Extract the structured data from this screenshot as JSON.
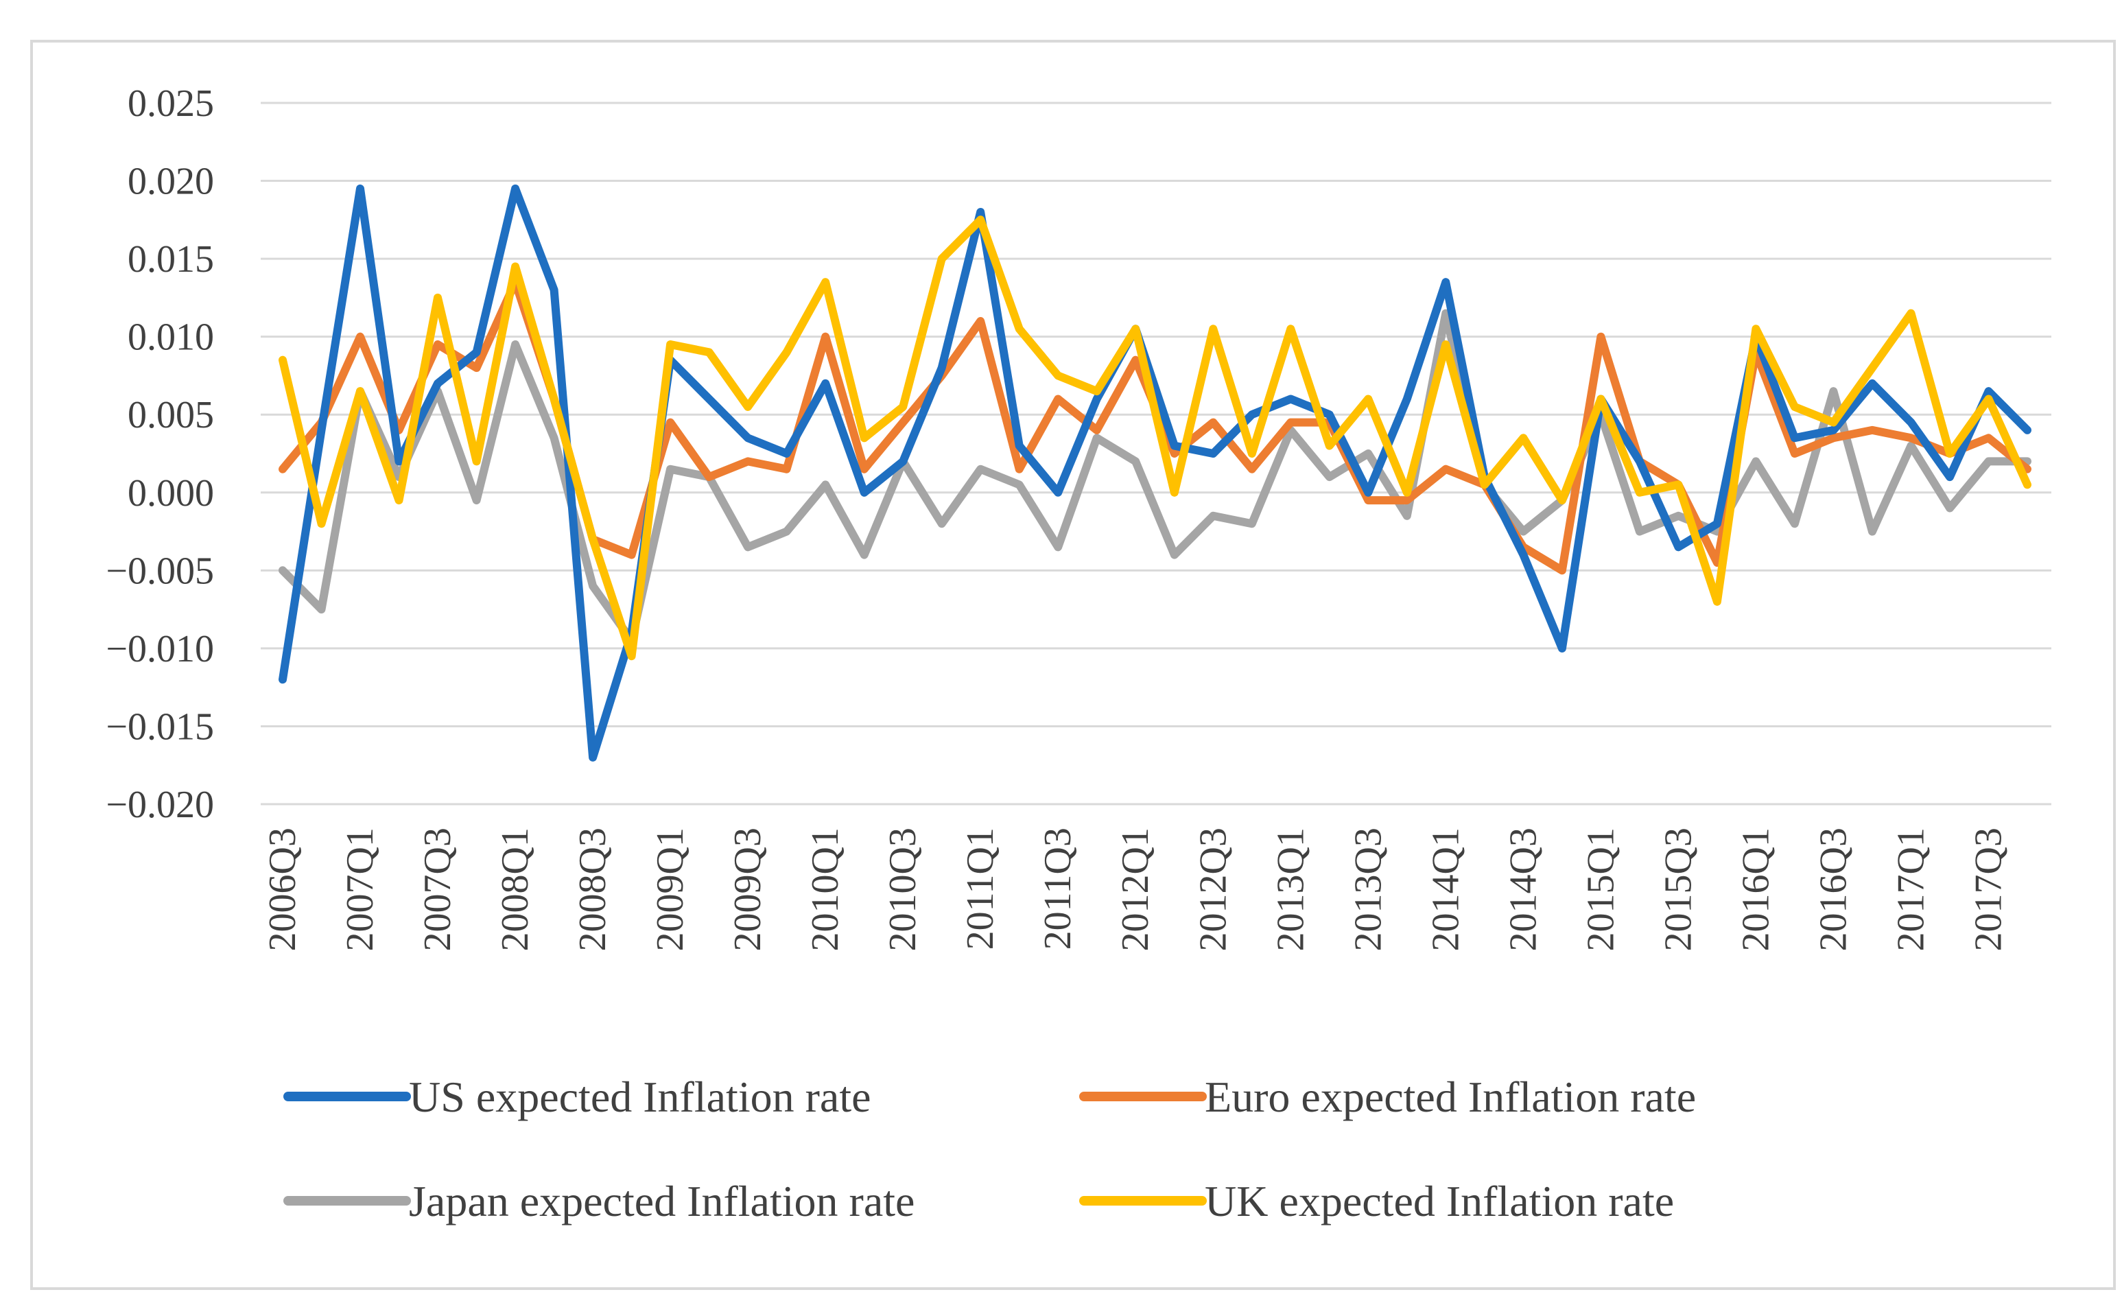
{
  "chart_data": {
    "type": "line",
    "title": "",
    "xlabel": "",
    "ylabel": "",
    "ylim": [
      -0.02,
      0.025
    ],
    "yticks": [
      "0.025",
      "0.020",
      "0.015",
      "0.010",
      "0.005",
      "0.000",
      "−0.005",
      "−0.010",
      "−0.015",
      "−0.020"
    ],
    "ytick_values": [
      0.025,
      0.02,
      0.015,
      0.01,
      0.005,
      0.0,
      -0.005,
      -0.01,
      -0.015,
      -0.02
    ],
    "grid": true,
    "legend_position": "bottom",
    "x": [
      "2006Q3",
      "2006Q4",
      "2007Q1",
      "2007Q2",
      "2007Q3",
      "2007Q4",
      "2008Q1",
      "2008Q2",
      "2008Q3",
      "2008Q4",
      "2009Q1",
      "2009Q2",
      "2009Q3",
      "2009Q4",
      "2010Q1",
      "2010Q2",
      "2010Q3",
      "2010Q4",
      "2011Q1",
      "2011Q2",
      "2011Q3",
      "2011Q4",
      "2012Q1",
      "2012Q2",
      "2012Q3",
      "2012Q4",
      "2013Q1",
      "2013Q2",
      "2013Q3",
      "2013Q4",
      "2014Q1",
      "2014Q2",
      "2014Q3",
      "2014Q4",
      "2015Q1",
      "2015Q2",
      "2015Q3",
      "2015Q4",
      "2016Q1",
      "2016Q2",
      "2016Q3",
      "2016Q4",
      "2017Q1",
      "2017Q2",
      "2017Q3",
      "2017Q4"
    ],
    "x_tick_labels": [
      "2006Q3",
      "2007Q1",
      "2007Q3",
      "2008Q1",
      "2008Q3",
      "2009Q1",
      "2009Q3",
      "2010Q1",
      "2010Q3",
      "2011Q1",
      "2011Q3",
      "2012Q1",
      "2012Q3",
      "2013Q1",
      "2013Q3",
      "2014Q1",
      "2014Q3",
      "2015Q1",
      "2015Q3",
      "2016Q1",
      "2016Q3",
      "2017Q1",
      "2017Q3"
    ],
    "series": [
      {
        "name": "US expected Inflation rate",
        "color": "#1f6fc1",
        "values": [
          -0.012,
          0.004,
          0.0195,
          0.002,
          0.007,
          0.009,
          0.0195,
          0.013,
          -0.017,
          -0.009,
          0.0085,
          0.006,
          0.0035,
          0.0025,
          0.007,
          0.0,
          0.002,
          0.008,
          0.018,
          0.003,
          0.0,
          0.006,
          0.0105,
          0.003,
          0.0025,
          0.005,
          0.006,
          0.005,
          0.0,
          0.006,
          0.0135,
          0.001,
          -0.004,
          -0.01,
          0.006,
          0.002,
          -0.0035,
          -0.002,
          0.01,
          0.0035,
          0.004,
          0.007,
          0.0045,
          0.001,
          0.0065,
          0.004
        ]
      },
      {
        "name": "Euro expected Inflation rate",
        "color": "#ed7d31",
        "values": [
          0.0015,
          0.0045,
          0.01,
          0.004,
          0.0095,
          0.008,
          0.0135,
          0.006,
          -0.003,
          -0.004,
          0.0045,
          0.001,
          0.002,
          0.0015,
          0.01,
          0.0015,
          0.0045,
          0.0075,
          0.011,
          0.0015,
          0.006,
          0.004,
          0.0085,
          0.0025,
          0.0045,
          0.0015,
          0.0045,
          0.0045,
          -0.0005,
          -0.0005,
          0.0015,
          0.0005,
          -0.0035,
          -0.005,
          0.01,
          0.002,
          0.0005,
          -0.0045,
          0.009,
          0.0025,
          0.0035,
          0.004,
          0.0035,
          0.0025,
          0.0035,
          0.0015
        ]
      },
      {
        "name": "Japan expected Inflation rate",
        "color": "#a5a5a5",
        "values": [
          -0.005,
          -0.0075,
          0.0065,
          0.001,
          0.0065,
          -0.0005,
          0.0095,
          0.0035,
          -0.006,
          -0.0095,
          0.0015,
          0.001,
          -0.0035,
          -0.0025,
          0.0005,
          -0.004,
          0.002,
          -0.002,
          0.0015,
          0.0005,
          -0.0035,
          0.0035,
          0.002,
          -0.004,
          -0.0015,
          -0.002,
          0.004,
          0.001,
          0.0025,
          -0.0015,
          0.0115,
          0.0005,
          -0.0025,
          -0.0005,
          0.005,
          -0.0025,
          -0.0015,
          -0.0025,
          0.002,
          -0.002,
          0.0065,
          -0.0025,
          0.003,
          -0.001,
          0.002,
          0.002
        ]
      },
      {
        "name": "UK expected Inflation rate",
        "color": "#ffc000",
        "values": [
          0.0085,
          -0.002,
          0.0065,
          -0.0005,
          0.0125,
          0.002,
          0.0145,
          0.006,
          -0.003,
          -0.0105,
          0.0095,
          0.009,
          0.0055,
          0.009,
          0.0135,
          0.0035,
          0.0055,
          0.015,
          0.0175,
          0.0105,
          0.0075,
          0.0065,
          0.0105,
          0.0,
          0.0105,
          0.0025,
          0.0105,
          0.003,
          0.006,
          0.0,
          0.0095,
          0.0005,
          0.0035,
          -0.0005,
          0.006,
          0.0,
          0.0005,
          -0.007,
          0.0105,
          0.0055,
          0.0045,
          0.008,
          0.0115,
          0.0025,
          0.006,
          0.0005
        ]
      }
    ]
  }
}
